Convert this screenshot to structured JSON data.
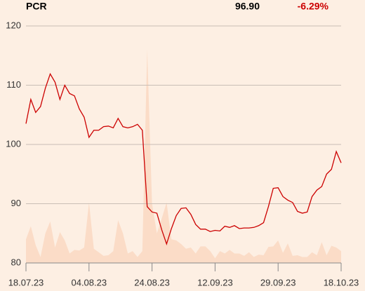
{
  "chart_data": {
    "type": "line",
    "title": "PCR",
    "price": "96.90",
    "change": "-6.29%",
    "categories": [
      "18.07.23",
      null,
      null,
      null,
      null,
      null,
      null,
      null,
      null,
      null,
      null,
      null,
      null,
      "04.08.23",
      null,
      null,
      null,
      null,
      null,
      null,
      null,
      null,
      null,
      null,
      null,
      null,
      "24.08.23",
      null,
      null,
      null,
      null,
      null,
      null,
      null,
      null,
      null,
      null,
      null,
      null,
      "12.09.23",
      null,
      null,
      null,
      null,
      null,
      null,
      null,
      null,
      null,
      null,
      null,
      null,
      "29.09.23",
      null,
      null,
      null,
      null,
      null,
      null,
      null,
      null,
      null,
      null,
      null,
      null,
      "18.10.23"
    ],
    "values": [
      103.5,
      107.6,
      105.4,
      106.4,
      109.5,
      111.9,
      110.5,
      107.6,
      110,
      108.6,
      108.2,
      106,
      104.6,
      101.2,
      102.4,
      102.4,
      103,
      103.1,
      102.8,
      104.4,
      103,
      102.8,
      103,
      103.4,
      102.4,
      89.5,
      88.6,
      88.4,
      85.6,
      83.2,
      85.8,
      88,
      89.2,
      89.3,
      88.2,
      86.5,
      85.7,
      85.7,
      85.3,
      85.5,
      85.4,
      86.2,
      86,
      86.3,
      85.8,
      85.9,
      85.9,
      86,
      86.3,
      86.8,
      89.5,
      92.6,
      92.7,
      91.2,
      90.6,
      90.2,
      88.7,
      88.4,
      88.6,
      91.2,
      92.3,
      92.9,
      95,
      95.8,
      98.8,
      96.9
    ],
    "color": "#cc0000",
    "volume": [
      84,
      86.2,
      83,
      81,
      85,
      87,
      82.6,
      85.2,
      83.8,
      81.6,
      82.2,
      82.1,
      82.6,
      90.2,
      82.4,
      81.8,
      81.2,
      81.3,
      82,
      87.2,
      85,
      81.6,
      82,
      81,
      82,
      116,
      90,
      85,
      87.5,
      90.2,
      84,
      83.8,
      83.2,
      82.4,
      82.6,
      81.6,
      82.8,
      82.8,
      82,
      80.8,
      82,
      81.6,
      82.2,
      81.6,
      81.6,
      81.2,
      81.8,
      81,
      81.4,
      81.3,
      82.7,
      82.8,
      83.8,
      81.7,
      83.3,
      81.2,
      81.3,
      81,
      81,
      81.8,
      81.3,
      83.5,
      81.3,
      82.9,
      82.6,
      82
    ],
    "volume_color": "#fbdcc7",
    "ylim": [
      80,
      120
    ],
    "yticks": [
      80,
      90,
      100,
      110,
      120
    ],
    "grid": true
  }
}
